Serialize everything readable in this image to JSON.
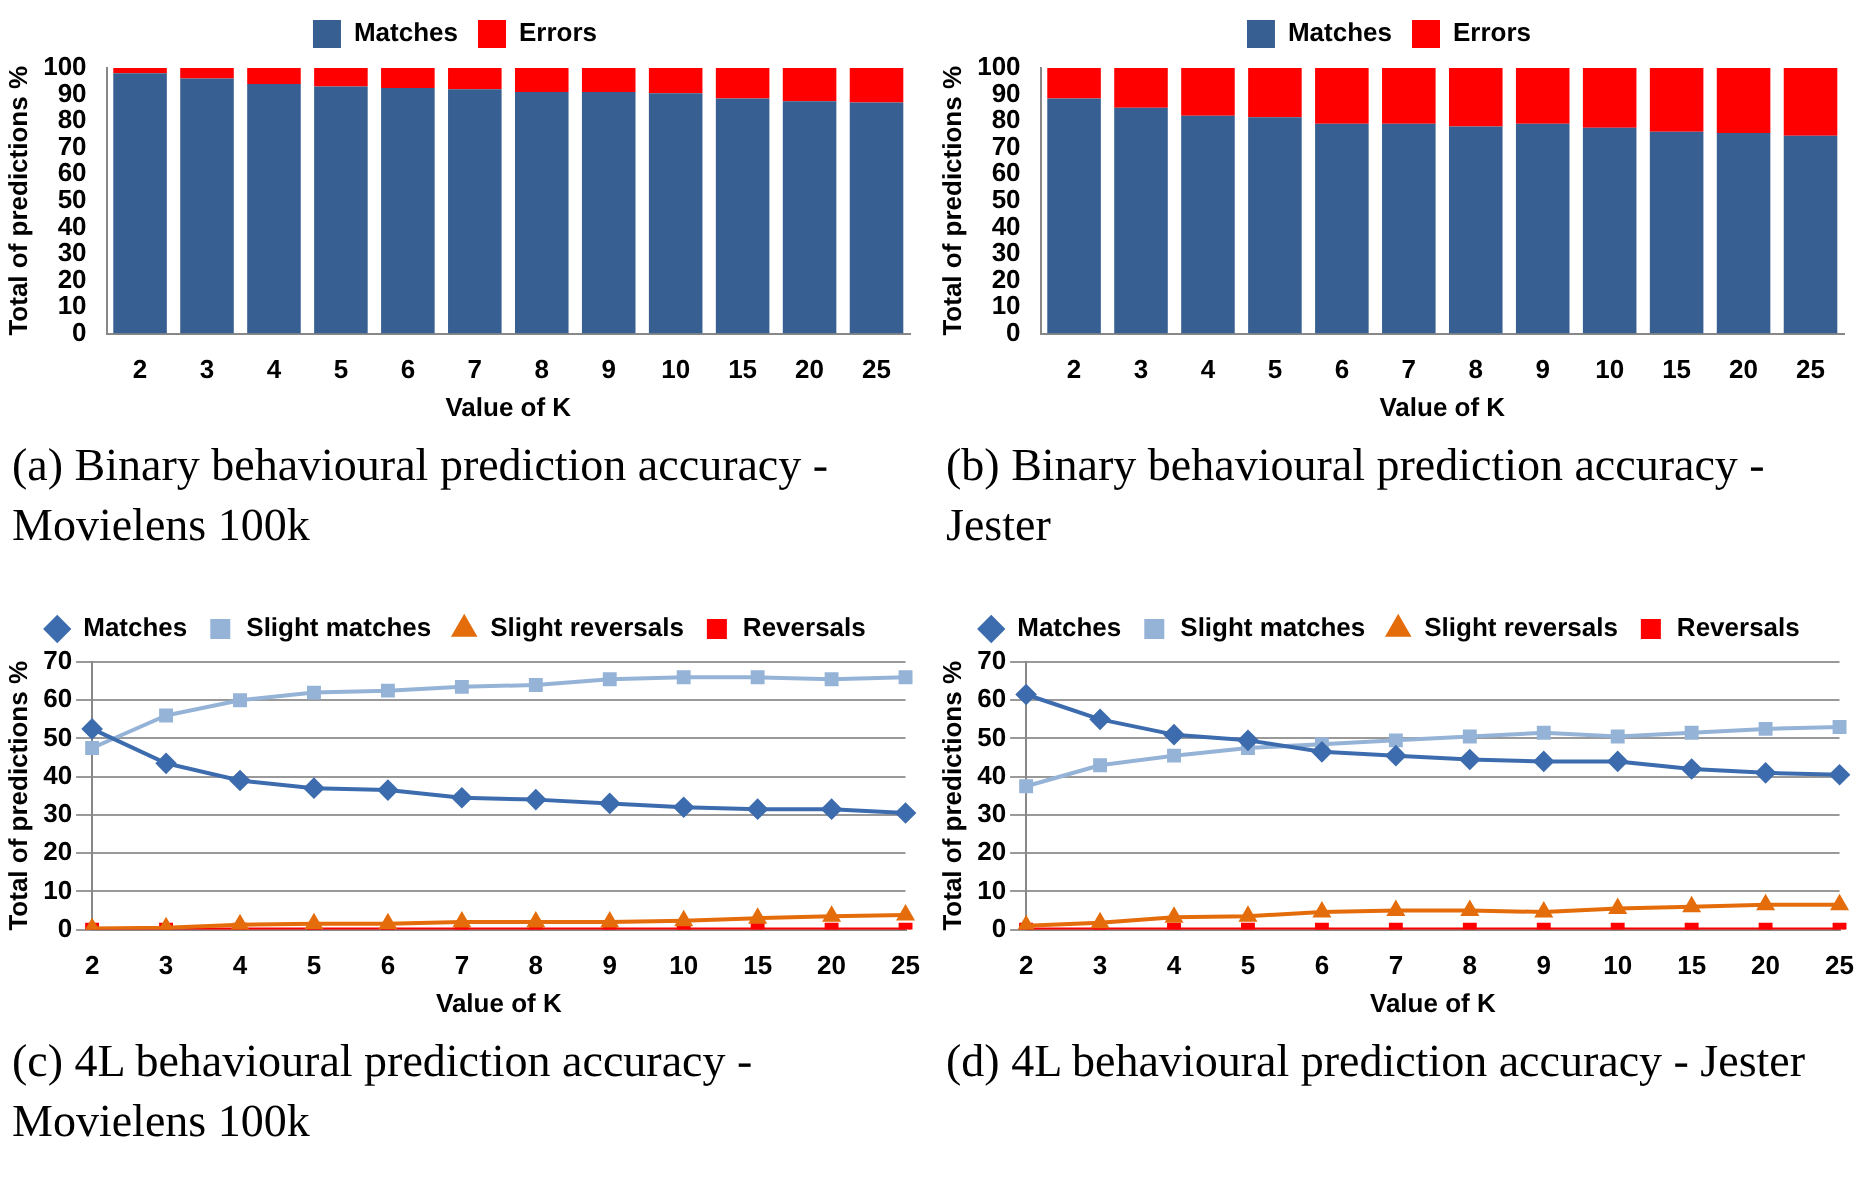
{
  "chart_data": [
    {
      "type": "bar",
      "stacked": true,
      "categories": [
        "2",
        "3",
        "4",
        "5",
        "6",
        "7",
        "8",
        "9",
        "10",
        "15",
        "20",
        "25"
      ],
      "xlabel": "Value of K",
      "ylabel": "Total of predictions %",
      "ylim": [
        0,
        100
      ],
      "yticks": [
        0,
        10,
        20,
        30,
        40,
        50,
        60,
        70,
        80,
        90,
        100
      ],
      "grid": false,
      "legend": "top",
      "annotations": [
        "(a) Binary behavioural prediction accuracy - Movielens 100k"
      ],
      "series": [
        {
          "name": "Matches",
          "color": "#385f91",
          "values": [
            98,
            96,
            94,
            93,
            92.5,
            92,
            91,
            91,
            90.5,
            88.5,
            87.5,
            87
          ]
        },
        {
          "name": "Errors",
          "color": "#ff0000",
          "values": [
            2,
            4,
            6,
            7,
            7.5,
            8,
            9,
            9,
            9.5,
            11.5,
            12.5,
            13
          ]
        }
      ]
    },
    {
      "type": "bar",
      "stacked": true,
      "categories": [
        "2",
        "3",
        "4",
        "5",
        "6",
        "7",
        "8",
        "9",
        "10",
        "15",
        "20",
        "25"
      ],
      "xlabel": "Value of K",
      "ylabel": "Total of predictions %",
      "ylim": [
        0,
        100
      ],
      "yticks": [
        0,
        10,
        20,
        30,
        40,
        50,
        60,
        70,
        80,
        90,
        100
      ],
      "grid": false,
      "legend": "top",
      "annotations": [
        "(b) Binary behavioural prediction accuracy - Jester"
      ],
      "series": [
        {
          "name": "Matches",
          "color": "#385f91",
          "values": [
            88.5,
            85,
            82,
            81.5,
            79,
            79,
            78,
            79,
            77.5,
            76,
            75.5,
            74.5
          ]
        },
        {
          "name": "Errors",
          "color": "#ff0000",
          "values": [
            11.5,
            15,
            18,
            18.5,
            21,
            21,
            22,
            21,
            22.5,
            24,
            24.5,
            25.5
          ]
        }
      ]
    },
    {
      "type": "line",
      "categories": [
        "2",
        "3",
        "4",
        "5",
        "6",
        "7",
        "8",
        "9",
        "10",
        "15",
        "20",
        "25"
      ],
      "xlabel": "Value of K",
      "ylabel": "Total of predictions %",
      "ylim": [
        0,
        70
      ],
      "yticks": [
        0,
        10,
        20,
        30,
        40,
        50,
        60,
        70
      ],
      "grid": "y",
      "legend": "top",
      "line_style": "solid",
      "annotations": [
        "(c) 4L behavioural prediction accuracy - Movielens 100k"
      ],
      "series": [
        {
          "name": "Matches",
          "color": "#3d6cae",
          "marker": "diamond",
          "values": [
            52.5,
            43.5,
            39,
            37,
            36.5,
            34.5,
            34,
            33,
            32,
            31.5,
            31.5,
            30.5
          ]
        },
        {
          "name": "Slight matches",
          "color": "#95b3d7",
          "marker": "square",
          "values": [
            47.5,
            56,
            60,
            62,
            62.5,
            63.5,
            64,
            65.5,
            66,
            66,
            65.5,
            66
          ]
        },
        {
          "name": "Slight reversals",
          "color": "#e46c0a",
          "marker": "triangle",
          "values": [
            0.3,
            0.5,
            1.3,
            1.5,
            1.5,
            2,
            2,
            2,
            2.3,
            3,
            3.5,
            3.8
          ]
        },
        {
          "name": "Reversals",
          "color": "#ff0000",
          "marker": "square",
          "values": [
            0,
            0,
            0,
            0,
            0,
            0,
            0,
            0,
            0,
            0,
            0,
            0
          ]
        }
      ]
    },
    {
      "type": "line",
      "categories": [
        "2",
        "3",
        "4",
        "5",
        "6",
        "7",
        "8",
        "9",
        "10",
        "15",
        "20",
        "25"
      ],
      "xlabel": "Value of K",
      "ylabel": "Total of predictions %",
      "ylim": [
        0,
        70
      ],
      "yticks": [
        0,
        10,
        20,
        30,
        40,
        50,
        60,
        70
      ],
      "grid": "y",
      "legend": "top",
      "line_style": "solid",
      "annotations": [
        "(d) 4L behavioural prediction accuracy - Jester"
      ],
      "series": [
        {
          "name": "Matches",
          "color": "#3d6cae",
          "marker": "diamond",
          "values": [
            61.5,
            55,
            51,
            49.5,
            46.5,
            45.5,
            44.5,
            44,
            44,
            42,
            41,
            40.5
          ]
        },
        {
          "name": "Slight matches",
          "color": "#95b3d7",
          "marker": "square",
          "values": [
            37.5,
            43,
            45.5,
            47.5,
            48.5,
            49.5,
            50.5,
            51.5,
            50.5,
            51.5,
            52.5,
            53
          ]
        },
        {
          "name": "Slight reversals",
          "color": "#e46c0a",
          "marker": "triangle",
          "values": [
            1,
            1.8,
            3.2,
            3.5,
            4.6,
            5,
            5,
            4.6,
            5.5,
            6,
            6.5,
            6.5
          ]
        },
        {
          "name": "Reversals",
          "color": "#ff0000",
          "marker": "square",
          "values": [
            0,
            0,
            0,
            0,
            0,
            0,
            0,
            0,
            0,
            0,
            0,
            0
          ]
        }
      ]
    }
  ]
}
